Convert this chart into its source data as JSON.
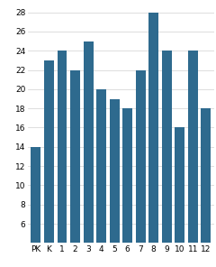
{
  "categories": [
    "PK",
    "K",
    "1",
    "2",
    "3",
    "4",
    "5",
    "6",
    "7",
    "8",
    "9",
    "10",
    "11",
    "12"
  ],
  "values": [
    14,
    23,
    24,
    22,
    25,
    20,
    19,
    18,
    22,
    28,
    24,
    16,
    24,
    18
  ],
  "bar_color": "#2e6a8e",
  "ylim": [
    4,
    29
  ],
  "yticks": [
    6,
    8,
    10,
    12,
    14,
    16,
    18,
    20,
    22,
    24,
    26,
    28
  ],
  "background_color": "#ffffff",
  "tick_fontsize": 6.5,
  "bar_width": 0.75,
  "grid_color": "#d0d0d0"
}
